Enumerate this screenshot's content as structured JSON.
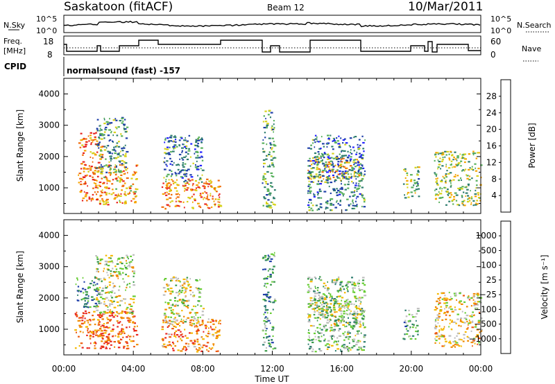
{
  "header": {
    "title": "Saskatoon (fitACF)",
    "beam": "Beam 12",
    "date": "10/Mar/2011"
  },
  "top_panels": {
    "nsky_label": "N.Sky",
    "nsky_ticks": [
      "10^5",
      "10^0"
    ],
    "nsearch_label": "N.Search",
    "nsearch_ticks": [
      "10^5",
      "10^0"
    ],
    "freq_label_1": "Freq.",
    "freq_label_2": "[MHz]",
    "freq_ticks": [
      "18",
      "8"
    ],
    "nave_label": "Nave",
    "nave_ticks": [
      "60",
      "0"
    ],
    "cpid_label": "CPID",
    "cpid_text": "normalsound (fast) -157"
  },
  "chart_data": [
    {
      "type": "heatmap",
      "name": "power",
      "ylabel": "Slant Range [km]",
      "xlabel": "Time UT",
      "x_ticks": [
        "00:00",
        "04:00",
        "08:00",
        "12:00",
        "16:00",
        "20:00",
        "00:00"
      ],
      "xlim_hours": [
        0,
        24
      ],
      "y_ticks": [
        1000,
        2000,
        3000,
        4000
      ],
      "ylim": [
        180,
        4500
      ],
      "colorbar_label": "Power [dB]",
      "colorbar_ticks": [
        "28",
        "24",
        "20",
        "16",
        "12",
        "8",
        "4"
      ],
      "colorbar_colors": [
        "#1f1fff",
        "#1f3fa8",
        "#2e7d6e",
        "#58b05c",
        "#d6d21a",
        "#f5a400",
        "#f06a0a",
        "#e8251e"
      ],
      "echo_regions": [
        {
          "t": [
            0.8,
            2.2
          ],
          "r": [
            600,
            2800
          ],
          "level": 0.8
        },
        {
          "t": [
            2.0,
            4.2
          ],
          "r": [
            450,
            1800
          ],
          "level": 0.7
        },
        {
          "t": [
            1.8,
            3.6
          ],
          "r": [
            1500,
            3300
          ],
          "level": 0.35
        },
        {
          "t": [
            5.6,
            9.0
          ],
          "r": [
            350,
            1300
          ],
          "level": 0.75
        },
        {
          "t": [
            5.7,
            8.0
          ],
          "r": [
            1200,
            2700
          ],
          "level": 0.3
        },
        {
          "t": [
            11.4,
            12.1
          ],
          "r": [
            300,
            3500
          ],
          "level": 0.4
        },
        {
          "t": [
            14.0,
            17.2
          ],
          "r": [
            1200,
            2000
          ],
          "level": 0.65
        },
        {
          "t": [
            14.0,
            17.3
          ],
          "r": [
            300,
            2700
          ],
          "level": 0.3
        },
        {
          "t": [
            19.5,
            20.4
          ],
          "r": [
            700,
            1700
          ],
          "level": 0.45
        },
        {
          "t": [
            21.3,
            24.0
          ],
          "r": [
            450,
            2200
          ],
          "level": 0.5
        }
      ]
    },
    {
      "type": "heatmap",
      "name": "velocity",
      "ylabel": "Slant Range [km]",
      "xlabel": "Time UT",
      "x_ticks": [
        "00:00",
        "04:00",
        "08:00",
        "12:00",
        "16:00",
        "20:00",
        "00:00"
      ],
      "xlim_hours": [
        0,
        24
      ],
      "y_ticks": [
        1000,
        2000,
        3000,
        4000
      ],
      "ylim": [
        180,
        4500
      ],
      "colorbar_label": "Velocity [m s⁻¹]",
      "colorbar_ticks": [
        "1000",
        "500",
        "100",
        "25",
        "−25",
        "−100",
        "−500",
        "−1000"
      ],
      "colorbar_colors": [
        "#1f3fa8",
        "#2e7d6e",
        "#3a9a4a",
        "#66cc33",
        "#bdbdbd",
        "#f5b800",
        "#f08a00",
        "#ee5a10",
        "#e8251e"
      ],
      "echo_regions": [
        {
          "t": [
            0.6,
            2.0
          ],
          "r": [
            1700,
            2700
          ],
          "level": 0.15
        },
        {
          "t": [
            0.6,
            2.6
          ],
          "r": [
            400,
            1600
          ],
          "level": 0.8
        },
        {
          "t": [
            2.0,
            4.2
          ],
          "r": [
            400,
            1600
          ],
          "level": 0.85
        },
        {
          "t": [
            1.8,
            4.0
          ],
          "r": [
            1500,
            3400
          ],
          "level": 0.5
        },
        {
          "t": [
            5.6,
            9.0
          ],
          "r": [
            300,
            1400
          ],
          "level": 0.75
        },
        {
          "t": [
            5.7,
            8.0
          ],
          "r": [
            1200,
            2700
          ],
          "level": 0.5
        },
        {
          "t": [
            11.4,
            12.1
          ],
          "r": [
            300,
            3500
          ],
          "level": 0.25
        },
        {
          "t": [
            14.0,
            17.2
          ],
          "r": [
            1100,
            2100
          ],
          "level": 0.48
        },
        {
          "t": [
            14.0,
            17.3
          ],
          "r": [
            300,
            2700
          ],
          "level": 0.38
        },
        {
          "t": [
            19.5,
            20.4
          ],
          "r": [
            700,
            1700
          ],
          "level": 0.3
        },
        {
          "t": [
            21.3,
            24.0
          ],
          "r": [
            450,
            2200
          ],
          "level": 0.6
        }
      ]
    }
  ]
}
